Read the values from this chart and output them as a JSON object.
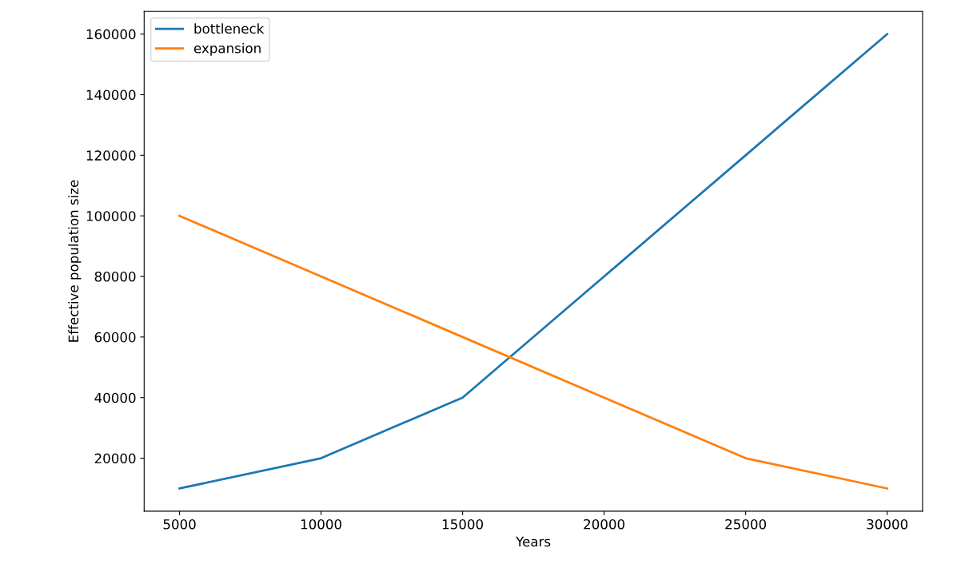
{
  "chart_data": {
    "type": "line",
    "xlabel": "Years",
    "ylabel": "Effective population size",
    "x": [
      5000,
      10000,
      15000,
      20000,
      25000,
      30000
    ],
    "series": [
      {
        "name": "bottleneck",
        "color": "#1f77b4",
        "values": [
          10000,
          20000,
          40000,
          80000,
          120000,
          160000
        ]
      },
      {
        "name": "expansion",
        "color": "#ff7f0e",
        "values": [
          100000,
          80000,
          60000,
          40000,
          20000,
          10000
        ]
      }
    ],
    "xlim": [
      3750,
      31250
    ],
    "xticks": [
      5000,
      10000,
      15000,
      20000,
      25000,
      30000
    ],
    "ylim": [
      2500,
      167500
    ],
    "yticks": [
      20000,
      40000,
      60000,
      80000,
      100000,
      120000,
      140000,
      160000
    ],
    "legend": "top left",
    "grid": false,
    "marker": "none",
    "line_style": "solid"
  }
}
